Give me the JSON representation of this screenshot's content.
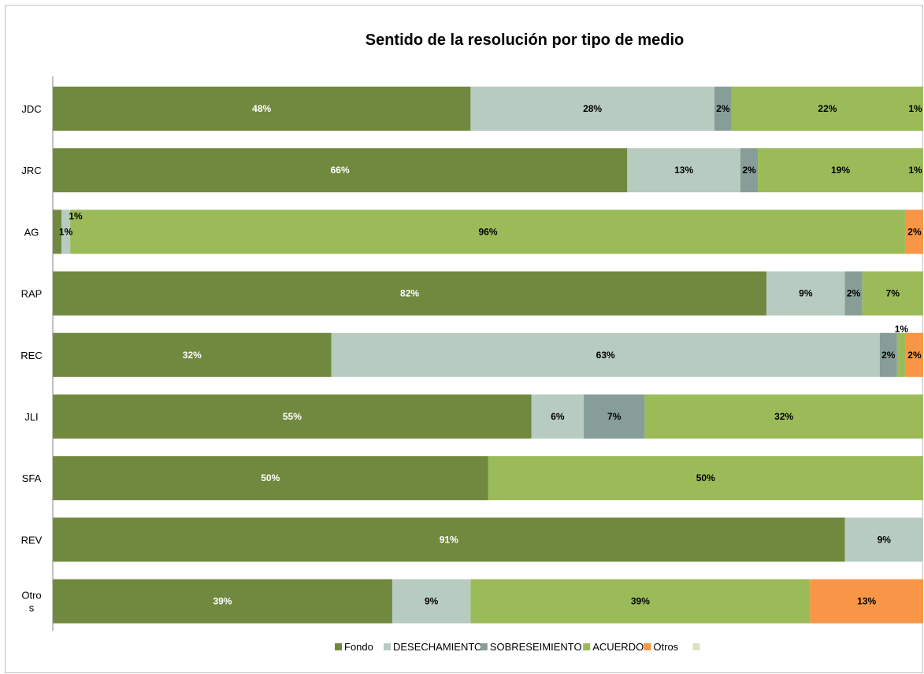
{
  "chart_data": {
    "type": "bar",
    "orientation": "horizontal",
    "stacked": true,
    "percent_stacked": true,
    "title": "Sentido de la resolución por tipo de medio",
    "xlabel": "",
    "ylabel": "",
    "xlim": [
      0,
      100
    ],
    "grid": false,
    "legend_position": "bottom",
    "categories": [
      {
        "lines": [
          "JDC"
        ]
      },
      {
        "lines": [
          "JRC"
        ]
      },
      {
        "lines": [
          "AG"
        ]
      },
      {
        "lines": [
          "RAP"
        ]
      },
      {
        "lines": [
          "REC"
        ]
      },
      {
        "lines": [
          "JLI"
        ]
      },
      {
        "lines": [
          "SFA"
        ]
      },
      {
        "lines": [
          "REV"
        ]
      },
      {
        "lines": [
          "Otro",
          "s"
        ]
      }
    ],
    "series": [
      {
        "name": "Fondo",
        "color": "#71893f",
        "values": [
          48,
          66,
          1,
          82,
          32,
          55,
          50,
          91,
          39
        ],
        "labels": [
          "48%",
          "66%",
          "",
          "82%",
          "32%",
          "55%",
          "50%",
          "91%",
          "39%"
        ],
        "label_color": "#ffffff"
      },
      {
        "name": "DESECHAMIENTO",
        "color": "#b7cbc1",
        "values": [
          28,
          13,
          1,
          9,
          63,
          6,
          0,
          9,
          9
        ],
        "labels": [
          "28%",
          "13%",
          "1%",
          "9%",
          "63%",
          "6%",
          "",
          "9%",
          "9%"
        ],
        "label_color": "#000000"
      },
      {
        "name": "SOBRESEIMIENTO",
        "color": "#879e98",
        "values": [
          2,
          2,
          0,
          2,
          2,
          7,
          0,
          0,
          0
        ],
        "labels": [
          "2%",
          "2%",
          "",
          "2%",
          "2%",
          "7%",
          "",
          "",
          ""
        ],
        "label_color": "#000000"
      },
      {
        "name": "ACUERDO",
        "color": "#9bbb59",
        "values": [
          22,
          19,
          96,
          7,
          1,
          32,
          50,
          0,
          39
        ],
        "labels": [
          "22%",
          "19%",
          "96%",
          "7%",
          "1%",
          "32%",
          "50%",
          "",
          "39%"
        ],
        "label_color": "#000000"
      },
      {
        "name": "Otros",
        "color": "#f79646",
        "values": [
          1,
          1,
          2,
          0,
          2,
          0,
          0,
          0,
          13
        ],
        "labels": [
          "1%",
          "1%",
          "2%",
          "",
          "2%",
          "",
          "",
          "",
          "13%"
        ],
        "label_color": "#000000"
      },
      {
        "name": "",
        "color": "#d7e4bd",
        "values": [
          0,
          0,
          0,
          0,
          0,
          0,
          0,
          0,
          0
        ],
        "labels": [
          "",
          "",
          "",
          "",
          "",
          "",
          "",
          "",
          ""
        ],
        "label_color": "#000000"
      }
    ],
    "extra_labels": [
      {
        "category_index": 2,
        "text": "1%"
      }
    ]
  }
}
